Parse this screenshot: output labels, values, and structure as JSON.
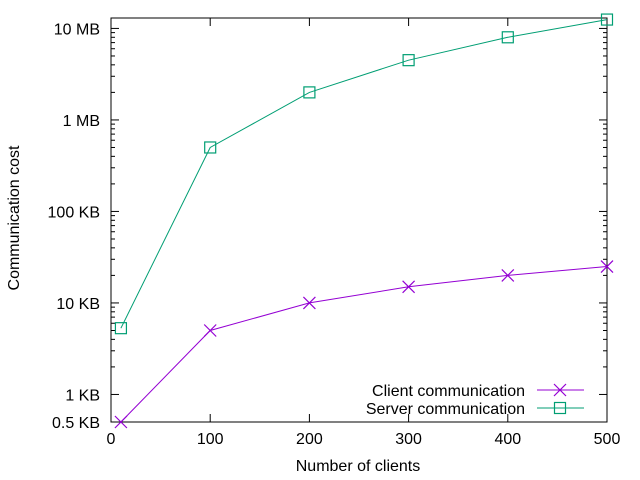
{
  "chart_data": {
    "type": "line",
    "xlabel": "Number of clients",
    "ylabel": "Communication cost",
    "xlim": [
      0,
      500
    ],
    "xticks": [
      0,
      100,
      200,
      300,
      400,
      500
    ],
    "ylim_kb": [
      0.5,
      13000
    ],
    "y_scale": "log",
    "yticks": [
      {
        "value_kb": 0.5,
        "label": "0.5 KB"
      },
      {
        "value_kb": 1,
        "label": "1 KB"
      },
      {
        "value_kb": 10,
        "label": "10 KB"
      },
      {
        "value_kb": 100,
        "label": "100 KB"
      },
      {
        "value_kb": 1000,
        "label": "1 MB"
      },
      {
        "value_kb": 10000,
        "label": "10 MB"
      }
    ],
    "legend_position": "bottom-right",
    "series": [
      {
        "name": "Client communication",
        "color": "#9400d3",
        "marker": "x",
        "x": [
          10,
          100,
          200,
          300,
          400,
          500
        ],
        "y_kb": [
          0.5,
          5,
          10,
          15,
          20,
          25
        ]
      },
      {
        "name": "Server communication",
        "color": "#009e73",
        "marker": "square",
        "x": [
          10,
          100,
          200,
          300,
          400,
          500
        ],
        "y_kb": [
          5.3,
          500,
          2000,
          4500,
          8000,
          12500
        ]
      }
    ]
  }
}
